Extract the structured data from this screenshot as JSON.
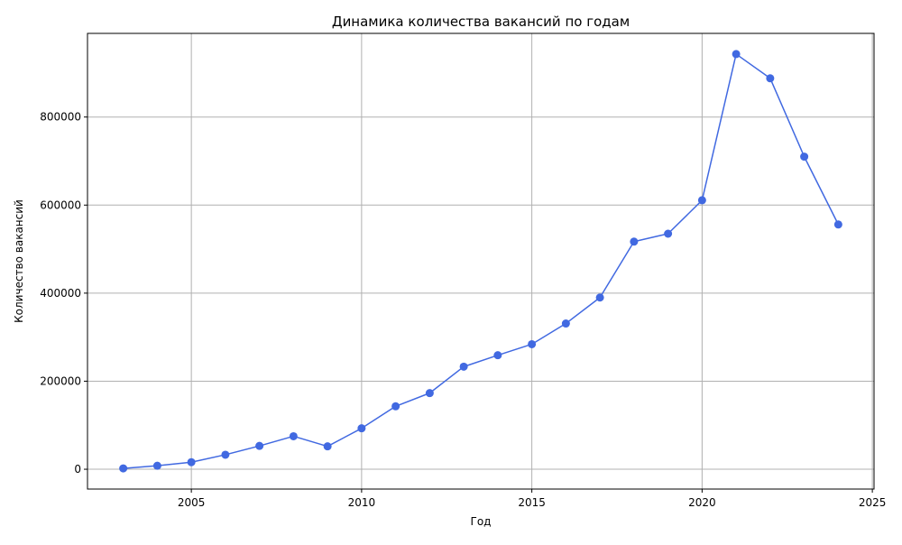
{
  "chart_data": {
    "type": "line",
    "title": "Динамика количества вакансий по годам",
    "xlabel": "Год",
    "ylabel": "Количество вакансий",
    "xlim": [
      2001.95,
      2025.05
    ],
    "ylim": [
      -45000,
      990000
    ],
    "xticks": [
      2005,
      2010,
      2015,
      2020,
      2025
    ],
    "xtick_labels": [
      "2005",
      "2010",
      "2015",
      "2020",
      "2025"
    ],
    "yticks": [
      0,
      200000,
      400000,
      600000,
      800000
    ],
    "ytick_labels": [
      "0",
      "200000",
      "400000",
      "600000",
      "800000"
    ],
    "grid": true,
    "legend": "none",
    "series": [
      {
        "color": "#4169e1",
        "marker": "circle",
        "x": [
          2003,
          2004,
          2005,
          2006,
          2007,
          2008,
          2009,
          2010,
          2011,
          2012,
          2013,
          2014,
          2015,
          2016,
          2017,
          2018,
          2019,
          2020,
          2021,
          2022,
          2023,
          2024
        ],
        "y": [
          2000,
          8000,
          16000,
          33000,
          53000,
          75000,
          52000,
          93000,
          143000,
          173000,
          233000,
          259000,
          284000,
          331000,
          390000,
          517000,
          535000,
          611000,
          943000,
          888000,
          710000,
          556000
        ]
      }
    ]
  }
}
